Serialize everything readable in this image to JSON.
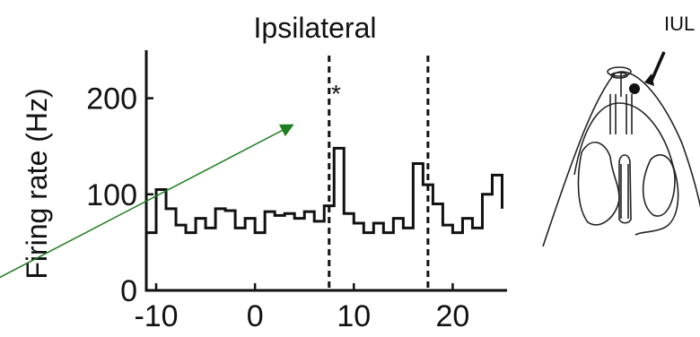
{
  "chart_data": {
    "type": "line",
    "title": "Ipsilateral",
    "xlabel": "",
    "ylabel": "Firing rate (Hz)",
    "xlim": [
      -11,
      25.5
    ],
    "ylim": [
      0,
      250
    ],
    "xticks": [
      -10,
      0,
      10,
      20
    ],
    "yticks": [
      0,
      100,
      200
    ],
    "xtick_labels": [
      "-10",
      "0",
      "10",
      "20"
    ],
    "ytick_labels": [
      "0",
      "100",
      "200"
    ],
    "grid": false,
    "bin_edges": [
      -11,
      -10,
      -9,
      -8,
      -7,
      -6,
      -5,
      -4,
      -3,
      -2,
      -1,
      0,
      1,
      2,
      3,
      4,
      5,
      6,
      7,
      8,
      9,
      10,
      11,
      12,
      13,
      14,
      15,
      16,
      17,
      18,
      19,
      20,
      21,
      22,
      23,
      24,
      25
    ],
    "series": [
      {
        "values": [
          60,
          105,
          85,
          68,
          60,
          75,
          65,
          85,
          83,
          65,
          75,
          60,
          82,
          78,
          80,
          75,
          82,
          72,
          88,
          148,
          80,
          70,
          60,
          70,
          60,
          75,
          65,
          132,
          110,
          90,
          68,
          60,
          75,
          65,
          100,
          120,
          85
        ]
      }
    ],
    "vlines": [
      7.5,
      17.5
    ],
    "annotation": "*",
    "annotation_x": 8.2,
    "annotation_y": 205
  },
  "schematic": {
    "label": "IUL"
  }
}
